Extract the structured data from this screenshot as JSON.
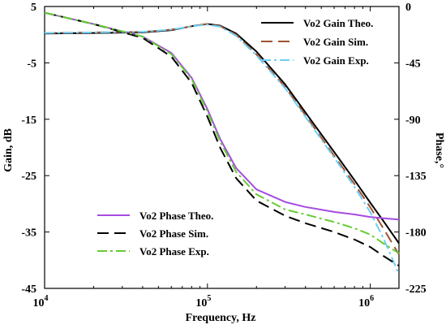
{
  "chart_data": {
    "type": "line",
    "xlabel": "Frequency, Hz",
    "ylabel": "Gain, dB",
    "ylabel_right": "Phase,°",
    "xscale": "log",
    "xlim": [
      10000,
      1500000
    ],
    "ylim": [
      -45,
      5
    ],
    "ylim_right": [
      -225,
      0
    ],
    "x_ticks": [
      {
        "value": 10000,
        "base": "10",
        "exp": "4"
      },
      {
        "value": 100000,
        "base": "10",
        "exp": "5"
      },
      {
        "value": 1000000,
        "base": "10",
        "exp": "6"
      }
    ],
    "y_ticks": [
      "5",
      "-5",
      "-15",
      "-25",
      "-35",
      "-45"
    ],
    "y_ticks_right": [
      "0",
      "-45",
      "-90",
      "-135",
      "-180",
      "-225"
    ],
    "grid": false,
    "legend_gain_position": "top-right",
    "legend_phase_position": "bottom-left",
    "series": [
      {
        "name": "Vo2 Gain Theo.",
        "axis": "left",
        "color": "#000000",
        "dash": "solid",
        "x": [
          10000,
          20000,
          40000,
          60000,
          80000,
          100000,
          120000,
          150000,
          200000,
          300000,
          400000,
          600000,
          800000,
          1000000,
          1200000,
          1500000
        ],
        "y": [
          0.2,
          0.3,
          0.4,
          0.8,
          1.5,
          1.9,
          1.6,
          0.2,
          -3.0,
          -8.8,
          -13.8,
          -20.8,
          -25.8,
          -29.8,
          -33.0,
          -37.0
        ]
      },
      {
        "name": "Vo2 Gain Sim.",
        "axis": "left",
        "color": "#a0522d",
        "dash": "long",
        "x": [
          10000,
          20000,
          40000,
          60000,
          80000,
          100000,
          120000,
          150000,
          200000,
          300000,
          400000,
          600000,
          800000,
          1000000,
          1200000,
          1500000
        ],
        "y": [
          0.3,
          0.4,
          0.5,
          0.9,
          1.5,
          1.9,
          1.5,
          0.0,
          -3.5,
          -9.3,
          -14.3,
          -21.5,
          -26.5,
          -30.6,
          -34.3,
          -39.0
        ]
      },
      {
        "name": "Vo2 Gain Exp.",
        "axis": "left",
        "color": "#6ecff6",
        "dash": "dashdot",
        "x": [
          10000,
          20000,
          40000,
          60000,
          80000,
          100000,
          120000,
          150000,
          200000,
          300000,
          400000,
          600000,
          800000,
          1000000,
          1200000,
          1500000
        ],
        "y": [
          0.3,
          0.4,
          0.5,
          0.9,
          1.5,
          1.8,
          1.4,
          -0.2,
          -3.7,
          -9.5,
          -14.6,
          -21.8,
          -27.0,
          -31.5,
          -36.0,
          -42.5
        ]
      },
      {
        "name": "Vo2 Phase Theo.",
        "axis": "right",
        "color": "#a64ce0",
        "dash": "solid",
        "x": [
          10000,
          20000,
          40000,
          60000,
          80000,
          100000,
          120000,
          150000,
          200000,
          300000,
          400000,
          600000,
          800000,
          1000000,
          1200000,
          1500000
        ],
        "y": [
          -5,
          -14,
          -24,
          -37,
          -57,
          -82,
          -106,
          -129,
          -146,
          -156,
          -160,
          -164,
          -166,
          -168,
          -169,
          -170
        ]
      },
      {
        "name": "Vo2 Phase Sim.",
        "axis": "right",
        "color": "#000000",
        "dash": "long",
        "x": [
          10000,
          20000,
          40000,
          60000,
          80000,
          100000,
          120000,
          150000,
          200000,
          300000,
          400000,
          600000,
          800000,
          1000000,
          1200000,
          1500000
        ],
        "y": [
          -5,
          -14,
          -25,
          -40,
          -61,
          -88,
          -113,
          -137,
          -155,
          -167,
          -173,
          -180,
          -186,
          -192,
          -199,
          -207
        ]
      },
      {
        "name": "Vo2 Phase Exp.",
        "axis": "right",
        "color": "#66cc33",
        "dash": "dashdot",
        "x": [
          10000,
          20000,
          40000,
          60000,
          80000,
          100000,
          120000,
          150000,
          200000,
          300000,
          400000,
          600000,
          800000,
          1000000,
          1200000,
          1500000
        ],
        "y": [
          -5,
          -14,
          -24,
          -38,
          -58,
          -84,
          -108,
          -132,
          -150,
          -162,
          -166,
          -172,
          -177,
          -182,
          -189,
          -197
        ]
      }
    ]
  }
}
